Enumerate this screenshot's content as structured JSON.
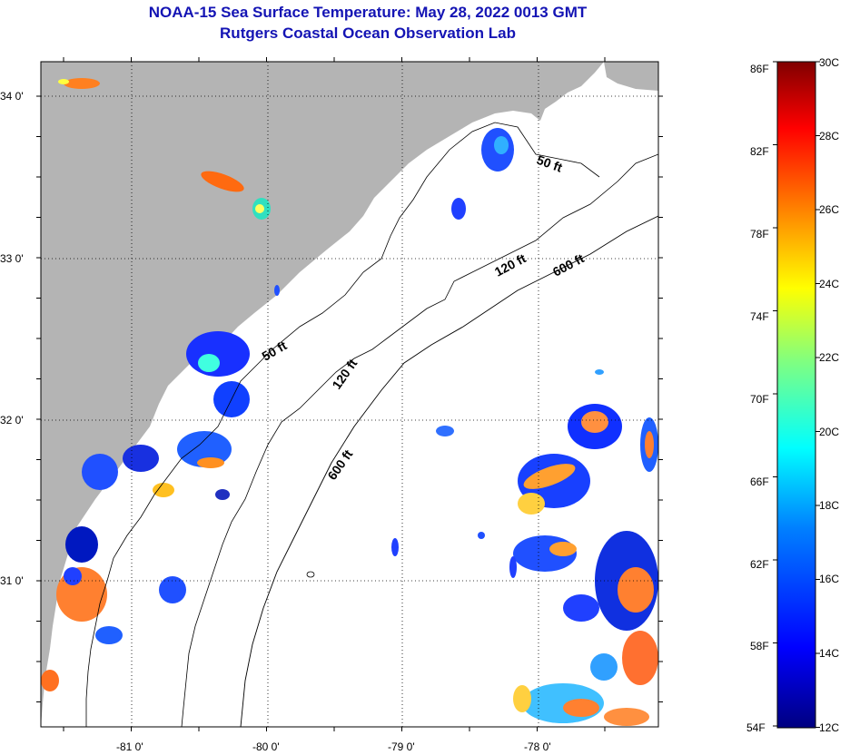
{
  "title_line1": "NOAA-15 Sea Surface Temperature:  May 28, 2022 0013 GMT",
  "title_line2": "Rutgers Coastal Ocean Observation Lab",
  "map": {
    "lat_labels": [
      "34 0'",
      "33 0'",
      "32 0'",
      "31 0'"
    ],
    "lon_labels": [
      "-81 0'",
      "-80 0'",
      "-79 0'",
      "-78 0'"
    ],
    "contours": [
      "50 ft",
      "50 ft",
      "120 ft",
      "120 ft",
      "600 ft",
      "600 ft"
    ],
    "colors": {
      "land": "#b4b4b4",
      "ocean": "#ffffff"
    }
  },
  "colorbar": {
    "fahrenheit": [
      "86F",
      "82F",
      "78F",
      "74F",
      "70F",
      "66F",
      "62F",
      "58F",
      "54F"
    ],
    "celsius": [
      "30C",
      "28C",
      "26C",
      "24C",
      "22C",
      "20C",
      "18C",
      "16C",
      "14C",
      "12C"
    ],
    "colors": [
      "#000080",
      "#0000ff",
      "#0080ff",
      "#00ffff",
      "#80ff80",
      "#ffff00",
      "#ff8000",
      "#ff0000",
      "#800000"
    ]
  }
}
